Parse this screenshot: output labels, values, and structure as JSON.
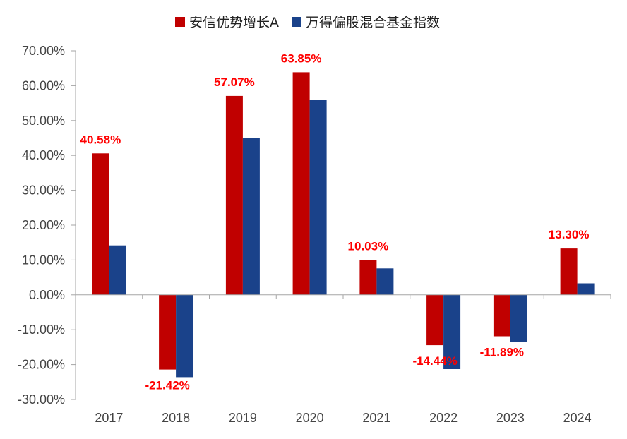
{
  "chart_data": {
    "type": "bar",
    "categories": [
      "2017",
      "2018",
      "2019",
      "2020",
      "2021",
      "2022",
      "2023",
      "2024"
    ],
    "series": [
      {
        "name": "安信优势增长A",
        "color": "#c00000",
        "values": [
          40.58,
          -21.42,
          57.07,
          63.85,
          10.03,
          -14.44,
          -11.89,
          13.3
        ],
        "labels": [
          "40.58%",
          "-21.42%",
          "57.07%",
          "63.85%",
          "10.03%",
          "-14.44%",
          "-11.89%",
          "13.30%"
        ]
      },
      {
        "name": "万得偏股混合基金指数",
        "color": "#1a428a",
        "values": [
          14.2,
          -23.6,
          45.1,
          56.0,
          7.6,
          -21.3,
          -13.6,
          3.3
        ]
      }
    ],
    "ylim": [
      -30,
      70
    ],
    "yticks": [
      "70.00%",
      "60.00%",
      "50.00%",
      "40.00%",
      "30.00%",
      "20.00%",
      "10.00%",
      "0.00%",
      "-10.00%",
      "-20.00%",
      "-30.00%"
    ],
    "ytick_values": [
      70,
      60,
      50,
      40,
      30,
      20,
      10,
      0,
      -10,
      -20,
      -30
    ],
    "legend_position": "top-center",
    "label_color": "#ff0000",
    "grid": false
  }
}
